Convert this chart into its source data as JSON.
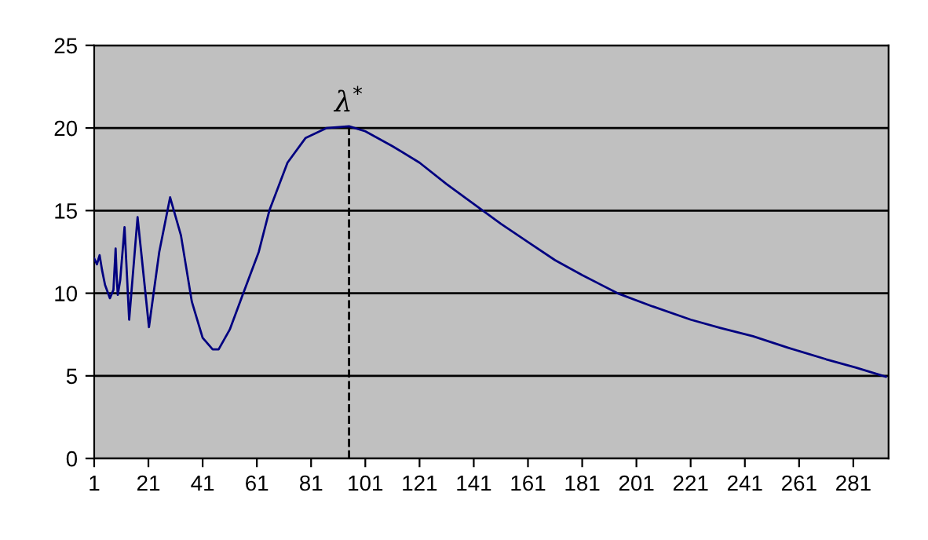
{
  "chart_data": {
    "type": "line",
    "x": [
      1,
      2,
      3,
      3.9,
      5,
      6.8,
      8.1,
      8.9,
      9.3,
      9.7,
      10.6,
      12.2,
      13.9,
      17,
      21.2,
      25,
      29,
      33,
      37,
      41,
      44.7,
      46.9,
      51,
      56,
      61.7,
      65.6,
      72.3,
      79,
      86.8,
      95,
      101,
      111,
      121,
      131,
      141,
      151,
      161,
      171,
      181,
      194,
      207,
      221,
      232,
      244,
      257,
      271,
      282,
      293
    ],
    "series": [
      {
        "color": "#000080",
        "values": [
          12.1,
          11.75,
          12.3,
          11.4,
          10.5,
          9.7,
          10.2,
          12.7,
          11.0,
          9.9,
          10.8,
          14.0,
          8.4,
          14.6,
          7.95,
          12.5,
          15.8,
          13.5,
          9.5,
          7.3,
          6.6,
          6.6,
          7.8,
          10.0,
          12.5,
          15.0,
          17.9,
          19.4,
          20.0,
          20.1,
          19.8,
          18.9,
          17.9,
          16.6,
          15.4,
          14.2,
          13.1,
          12.0,
          11.1,
          10.0,
          9.2,
          8.4,
          7.9,
          7.4,
          6.7,
          6.0,
          5.5,
          4.95
        ]
      }
    ],
    "xlim": [
      1,
      294
    ],
    "xticks": [
      1,
      21,
      41,
      61,
      81,
      101,
      121,
      141,
      161,
      181,
      201,
      221,
      241,
      261,
      281
    ],
    "ylim": [
      0,
      25
    ],
    "yticks": [
      0,
      5,
      10,
      15,
      20,
      25
    ],
    "grid": "y",
    "legend": false,
    "marker": "none",
    "line_style": "solid",
    "ref_lines": [
      {
        "axis": "x",
        "value": 95,
        "label": "λ$^{*}$",
        "color": "#000000",
        "line_style": "dashed"
      }
    ]
  }
}
